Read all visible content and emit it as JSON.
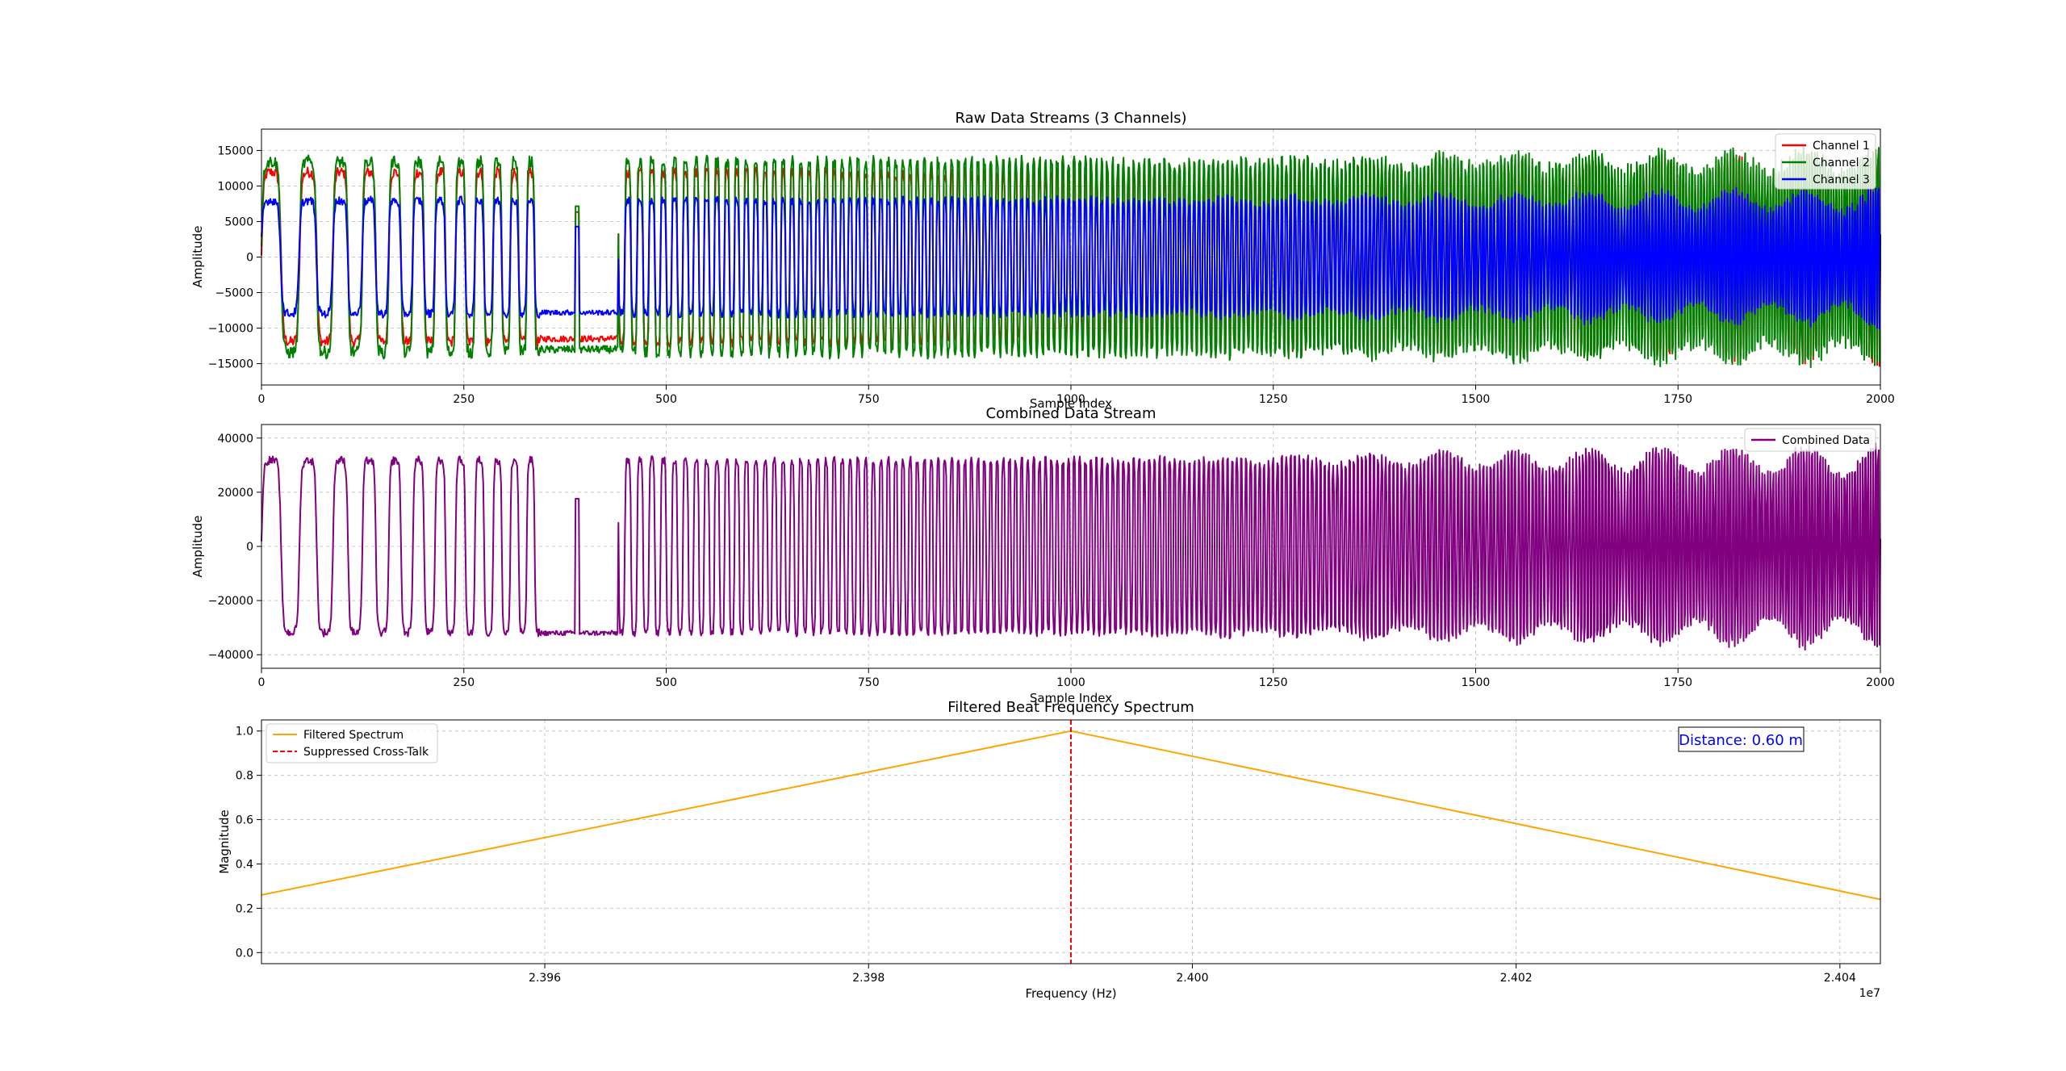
{
  "chart_data": [
    {
      "type": "line",
      "title": "Raw Data Streams (3 Channels)",
      "xlabel": "Sample Index",
      "ylabel": "Amplitude",
      "xlim": [
        0,
        2000
      ],
      "ylim": [
        -18000,
        18000
      ],
      "xticks": [
        0,
        250,
        500,
        750,
        1000,
        1250,
        1500,
        1750,
        2000
      ],
      "xticklabels": [
        "0",
        "250",
        "500",
        "750",
        "1000",
        "1250",
        "1500",
        "1750",
        "2000"
      ],
      "yticks": [
        -15000,
        -10000,
        -5000,
        0,
        5000,
        10000,
        15000
      ],
      "yticklabels": [
        "−15000",
        "−10000",
        "−5000",
        "0",
        "5000",
        "10000",
        "15000"
      ],
      "grid": true,
      "legend": "top-right",
      "series": [
        {
          "name": "Channel 1",
          "color": "#ff0000",
          "amplitude": 12000,
          "gap_level": -11500
        },
        {
          "name": "Channel 2",
          "color": "#008000",
          "amplitude": 13500,
          "gap_level": -13000
        },
        {
          "name": "Channel 3",
          "color": "#0000ff",
          "amplitude": 8000,
          "gap_level": -7800
        }
      ]
    },
    {
      "type": "line",
      "title": "Combined Data Stream",
      "xlabel": "Sample Index",
      "ylabel": "Amplitude",
      "xlim": [
        0,
        2000
      ],
      "ylim": [
        -45000,
        45000
      ],
      "xticks": [
        0,
        250,
        500,
        750,
        1000,
        1250,
        1500,
        1750,
        2000
      ],
      "xticklabels": [
        "0",
        "250",
        "500",
        "750",
        "1000",
        "1250",
        "1500",
        "1750",
        "2000"
      ],
      "yticks": [
        -40000,
        -20000,
        0,
        20000,
        40000
      ],
      "yticklabels": [
        "−40000",
        "−20000",
        "0",
        "20000",
        "40000"
      ],
      "grid": true,
      "legend": "top-right",
      "series": [
        {
          "name": "Combined Data",
          "color": "#800080",
          "amplitude": 32000,
          "gap_level": -32000
        }
      ]
    },
    {
      "type": "line",
      "title": "Filtered Beat Frequency Spectrum",
      "xlabel": "Frequency (Hz)",
      "ylabel": "Magnitude",
      "xlim": [
        23942500,
        24042500
      ],
      "ylim": [
        -0.05,
        1.05
      ],
      "xticks": [
        23960000,
        23980000,
        24000000,
        24020000,
        24040000
      ],
      "xticklabels": [
        "2.396",
        "2.398",
        "2.400",
        "2.402",
        "2.404"
      ],
      "x_offset_label": "1e7",
      "yticks": [
        0.0,
        0.2,
        0.4,
        0.6,
        0.8,
        1.0
      ],
      "yticklabels": [
        "0.0",
        "0.2",
        "0.4",
        "0.6",
        "0.8",
        "1.0"
      ],
      "grid": true,
      "legend": "top-left",
      "series": [
        {
          "name": "Filtered Spectrum",
          "color": "#ffa500",
          "style": "solid",
          "x": [
            23942500,
            23992500,
            24042500
          ],
          "y": [
            0.26,
            1.0,
            0.24
          ]
        },
        {
          "name": "Suppressed Cross-Talk",
          "color": "#ff0000",
          "style": "dashed",
          "vline_x": 23992500
        }
      ],
      "annotation": {
        "text": "Distance: 0.60 m",
        "color": "#0000ff"
      }
    }
  ]
}
